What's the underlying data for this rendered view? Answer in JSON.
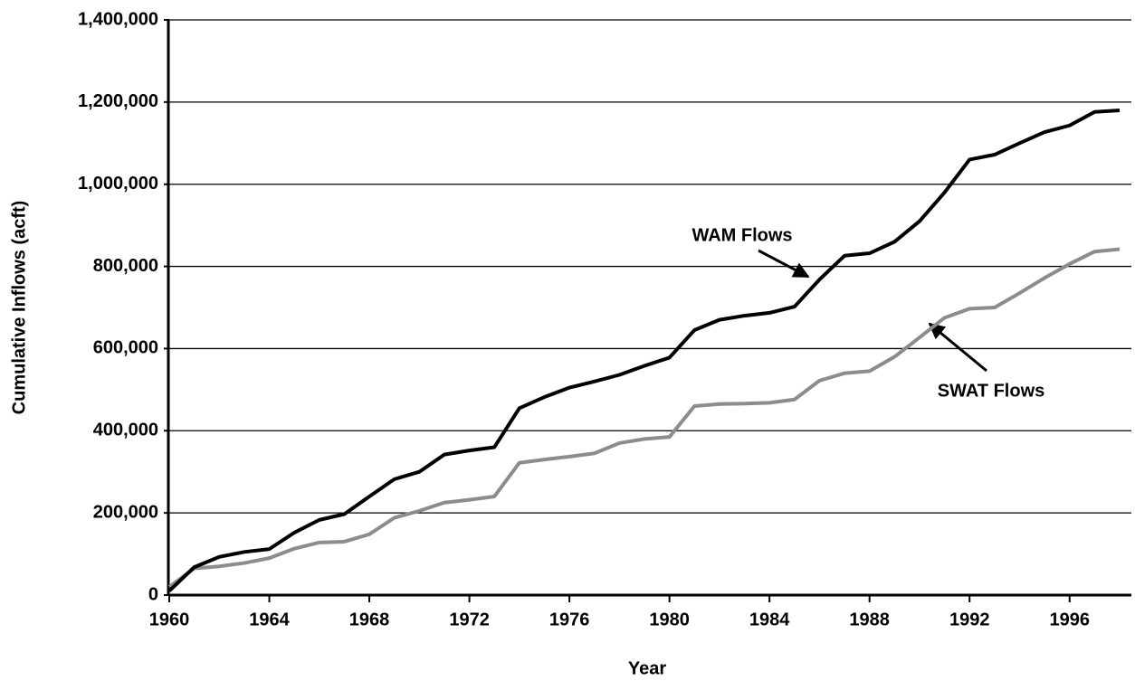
{
  "chart_data": {
    "type": "line",
    "x_label": "Year",
    "y_label": "Cumulative Inflows (acft)",
    "x": [
      1960,
      1961,
      1962,
      1963,
      1964,
      1965,
      1966,
      1967,
      1968,
      1969,
      1970,
      1971,
      1972,
      1973,
      1974,
      1975,
      1976,
      1977,
      1978,
      1979,
      1980,
      1981,
      1982,
      1983,
      1984,
      1985,
      1986,
      1987,
      1988,
      1989,
      1990,
      1991,
      1992,
      1993,
      1994,
      1995,
      1996,
      1997,
      1998
    ],
    "series": [
      {
        "name": "WAM Flows",
        "color": "#000000",
        "values": [
          10000,
          68000,
          93000,
          105000,
          112000,
          152000,
          183000,
          197000,
          240000,
          282000,
          300000,
          342000,
          352000,
          360000,
          455000,
          482000,
          505000,
          520000,
          536000,
          558000,
          578000,
          645000,
          670000,
          680000,
          687000,
          702000,
          768000,
          826000,
          832000,
          860000,
          910000,
          980000,
          1060000,
          1072000,
          1100000,
          1127000,
          1143000,
          1176000,
          1180000
        ]
      },
      {
        "name": "SWAT Flows",
        "color": "#8c8c8c",
        "values": [
          20000,
          65000,
          70000,
          78000,
          90000,
          113000,
          128000,
          130000,
          148000,
          188000,
          205000,
          225000,
          232000,
          240000,
          322000,
          330000,
          337000,
          345000,
          370000,
          380000,
          385000,
          460000,
          465000,
          466000,
          468000,
          476000,
          522000,
          540000,
          545000,
          580000,
          627000,
          675000,
          697000,
          700000,
          735000,
          772000,
          806000,
          836000,
          842000
        ]
      }
    ],
    "xlim": [
      1960,
      1998
    ],
    "xticks": [
      1960,
      1964,
      1968,
      1972,
      1976,
      1980,
      1984,
      1988,
      1992,
      1996
    ],
    "ylim": [
      0,
      1400000
    ],
    "yticks": [
      0,
      {
        "value": 200000,
        "label": "200,000"
      },
      {
        "value": 400000,
        "label": "400,000"
      },
      {
        "value": 600000,
        "label": "600,000"
      },
      {
        "value": 800000,
        "label": "800,000"
      },
      {
        "value": 1000000,
        "label": "1,000,000"
      },
      {
        "value": 1200000,
        "label": "1,200,000"
      },
      {
        "value": 1400000,
        "label": "1,400,000"
      }
    ],
    "grid": true
  }
}
